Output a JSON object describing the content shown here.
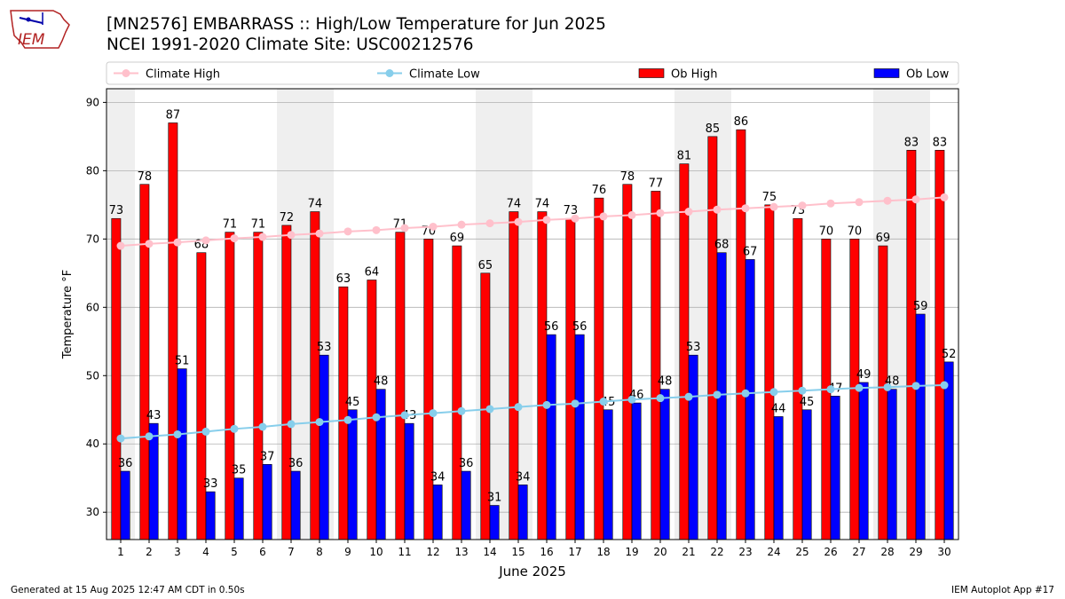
{
  "header": {
    "logo_text": "IEM",
    "title": "[MN2576] EMBARRASS :: High/Low Temperature for Jun 2025",
    "subtitle": "NCEI 1991-2020 Climate Site: USC00212576"
  },
  "footer": {
    "generated": "Generated at 15 Aug 2025 12:47 AM CDT in 0.50s",
    "app": "IEM Autoplot App #17"
  },
  "colors": {
    "ob_high": "#ff0000",
    "ob_low": "#0000ff",
    "climate_high": "#ffc0cb",
    "climate_low": "#87ceeb",
    "weekend_band": "#efefef"
  },
  "chart_data": {
    "type": "bar",
    "xlabel": "June 2025",
    "ylabel": "Temperature °F",
    "ylim": [
      26,
      92
    ],
    "yticks": [
      30,
      40,
      50,
      60,
      70,
      80,
      90
    ],
    "grid": true,
    "legend_placement": "top",
    "categories": [
      1,
      2,
      3,
      4,
      5,
      6,
      7,
      8,
      9,
      10,
      11,
      12,
      13,
      14,
      15,
      16,
      17,
      18,
      19,
      20,
      21,
      22,
      23,
      24,
      25,
      26,
      27,
      28,
      29,
      30
    ],
    "weekend_days": [
      1,
      7,
      8,
      14,
      15,
      21,
      22,
      28,
      29
    ],
    "series": [
      {
        "name": "Ob High",
        "kind": "bar",
        "values": [
          73,
          78,
          87,
          68,
          71,
          71,
          72,
          74,
          63,
          64,
          71,
          70,
          69,
          65,
          74,
          74,
          73,
          76,
          78,
          77,
          81,
          85,
          86,
          75,
          73,
          70,
          70,
          69,
          83,
          83
        ]
      },
      {
        "name": "Ob Low",
        "kind": "bar",
        "values": [
          36,
          43,
          51,
          33,
          35,
          37,
          36,
          53,
          45,
          48,
          43,
          34,
          36,
          31,
          34,
          56,
          56,
          45,
          46,
          48,
          53,
          68,
          67,
          44,
          45,
          47,
          49,
          48,
          59,
          52
        ]
      },
      {
        "name": "Climate High",
        "kind": "line",
        "values": [
          69.0,
          69.3,
          69.5,
          69.8,
          70.1,
          70.3,
          70.6,
          70.8,
          71.1,
          71.3,
          71.6,
          71.8,
          72.1,
          72.3,
          72.5,
          72.8,
          73.0,
          73.3,
          73.5,
          73.8,
          74.0,
          74.3,
          74.5,
          74.7,
          74.9,
          75.2,
          75.4,
          75.6,
          75.8,
          76.1
        ]
      },
      {
        "name": "Climate Low",
        "kind": "line",
        "values": [
          40.8,
          41.1,
          41.4,
          41.8,
          42.2,
          42.5,
          42.9,
          43.2,
          43.5,
          43.9,
          44.2,
          44.5,
          44.8,
          45.1,
          45.4,
          45.7,
          45.9,
          46.2,
          46.5,
          46.7,
          46.9,
          47.2,
          47.4,
          47.6,
          47.8,
          48.0,
          48.2,
          48.3,
          48.5,
          48.6
        ]
      }
    ],
    "labeled_values": {
      "bar_high": "Ob High",
      "bar_low": "Ob Low"
    }
  }
}
